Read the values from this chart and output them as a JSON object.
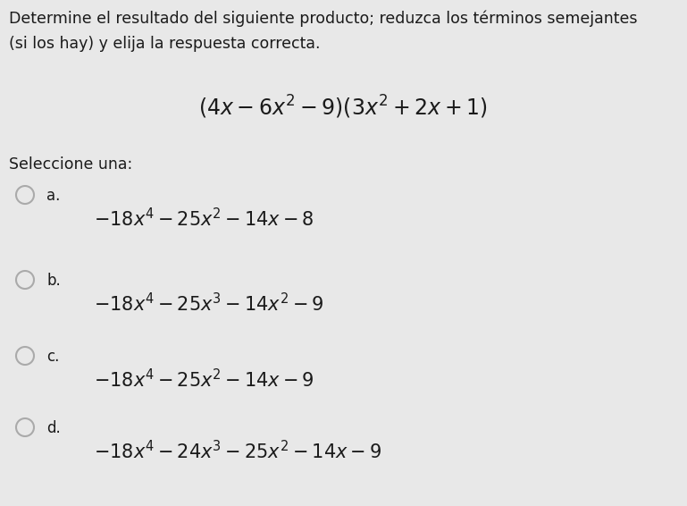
{
  "bg_color": "#e8e8e8",
  "text_color": "#1a1a1a",
  "title_line1": "Determine el resultado del siguiente producto; reduzca los términos semejantes",
  "title_line2": "(si los hay) y elija la respuesta correcta.",
  "question": "$(4x - 6x^2 - 9)(3x^2 + 2x + 1)$",
  "select_label": "Seleccione una:",
  "options": [
    {
      "letter": "a.",
      "formula": "$-18x^4 - 25x^2 - 14x - 8$"
    },
    {
      "letter": "b.",
      "formula": "$-18x^4 - 25x^3 - 14x^2 - 9$"
    },
    {
      "letter": "c.",
      "formula": "$-18x^4 - 25x^2 - 14x - 9$"
    },
    {
      "letter": "d.",
      "formula": "$-18x^4 - 24x^3 - 25x^2 - 14x - 9$"
    }
  ],
  "circle_color": "#e8e8e8",
  "circle_edge_color": "#aaaaaa",
  "title_fontsize": 12.5,
  "question_fontsize": 17,
  "option_letter_fontsize": 12,
  "option_formula_fontsize": 15,
  "select_fontsize": 12.5,
  "fig_width": 7.69,
  "fig_height": 5.66,
  "dpi": 100
}
